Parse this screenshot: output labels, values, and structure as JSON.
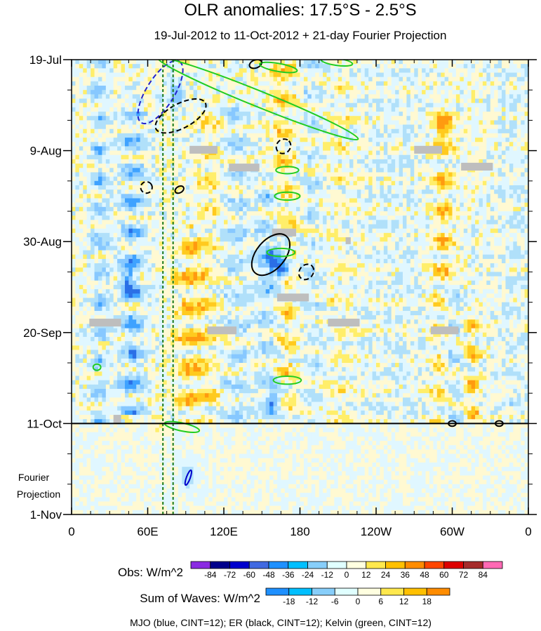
{
  "chart_data": {
    "type": "heatmap",
    "title": "OLR anomalies: 17.5°S - 2.5°S",
    "subtitle": "19-Jul-2012 to 11-Oct-2012 + 21-day Fourier Projection",
    "x_tick_labels": [
      "0",
      "60E",
      "120E",
      "180",
      "120W",
      "60W",
      "0"
    ],
    "x_tick_lons": [
      0,
      60,
      120,
      180,
      240,
      300,
      360
    ],
    "xlim": [
      0,
      360
    ],
    "y_ticks": [
      {
        "label": "19-Jul",
        "day": 0
      },
      {
        "label": "9-Aug",
        "day": 21
      },
      {
        "label": "30-Aug",
        "day": 42
      },
      {
        "label": "20-Sep",
        "day": 63
      },
      {
        "label": "11-Oct",
        "day": 84
      },
      {
        "label": "1-Nov",
        "day": 105
      }
    ],
    "ylim_days": [
      0,
      105
    ],
    "projection_label_line1": "Fourier",
    "projection_label_line2": "Projection",
    "end_of_obs_day": 84,
    "dashed_longitudes": [
      72,
      80
    ],
    "obs_colorbar": {
      "name": "Obs: W/m^2",
      "levels": [
        "-84",
        "-72",
        "-60",
        "-48",
        "-36",
        "-24",
        "-12",
        "0",
        "12",
        "24",
        "36",
        "48",
        "60",
        "72",
        "84"
      ],
      "colors": [
        "#8a2be2",
        "#00008b",
        "#0000cd",
        "#4169e1",
        "#1e90ff",
        "#00bfff",
        "#87cefa",
        "#e0ffff",
        "#ffffe0",
        "#ffe84d",
        "#ffc000",
        "#ff8c00",
        "#ff4500",
        "#dd0000",
        "#a52a2a",
        "#ff69b4"
      ]
    },
    "waves_colorbar": {
      "name": "Sum of Waves: W/m^2",
      "levels": [
        "-18",
        "-12",
        "-6",
        "0",
        "6",
        "12",
        "18"
      ],
      "colors": [
        "#1e90ff",
        "#00bfff",
        "#87cefa",
        "#e0ffff",
        "#ffffe0",
        "#ffe84d",
        "#ffc000",
        "#ff8c00"
      ]
    },
    "footnote": "MJO (blue, CINT=12); ER (black, CINT=12); Kelvin (green, CINT=12)",
    "missing_data_boxes": [
      {
        "lon0": 93,
        "lon1": 115,
        "day0": 19.9,
        "day1": 21.7
      },
      {
        "lon0": 124,
        "lon1": 148,
        "day0": 24.0,
        "day1": 25.8
      },
      {
        "lon0": 158,
        "lon1": 177,
        "day0": 39.0,
        "day1": 40.8
      },
      {
        "lon0": 216,
        "lon1": 220,
        "day0": 41.0,
        "day1": 42.6
      },
      {
        "lon0": 162,
        "lon1": 187,
        "day0": 54.0,
        "day1": 55.8
      },
      {
        "lon0": 14,
        "lon1": 39,
        "day0": 59.8,
        "day1": 61.6
      },
      {
        "lon0": 107,
        "lon1": 130,
        "day0": 61.6,
        "day1": 63.4
      },
      {
        "lon0": 202,
        "lon1": 227,
        "day0": 59.8,
        "day1": 61.6
      },
      {
        "lon0": 283,
        "lon1": 305,
        "day0": 61.6,
        "day1": 63.4
      },
      {
        "lon0": 270,
        "lon1": 292,
        "day0": 19.9,
        "day1": 21.7
      },
      {
        "lon0": 307,
        "lon1": 332,
        "day0": 23.8,
        "day1": 25.6
      },
      {
        "lon0": 33,
        "lon1": 39,
        "day0": 82.0,
        "day1": 84.0
      }
    ],
    "wave_contours": [
      {
        "wave": "MJO",
        "color": "#2222cc",
        "dashed": true,
        "lon": 70,
        "day": 7.5,
        "dlon": 22,
        "dday": 16,
        "angle": -58
      },
      {
        "wave": "MJO",
        "color": "#0000cc",
        "dashed": false,
        "lon": 92,
        "day": 96.5,
        "dlon": 3,
        "dday": 3,
        "angle": -70
      },
      {
        "wave": "ER",
        "color": "#000000",
        "dashed": true,
        "lon": 86,
        "day": 13,
        "dlon": 44,
        "dday": 5,
        "angle": -28
      },
      {
        "wave": "ER",
        "color": "#000000",
        "dashed": true,
        "lon": 167,
        "day": 20,
        "dlon": 12,
        "dday": 2.5,
        "angle": -45
      },
      {
        "wave": "ER",
        "color": "#000000",
        "dashed": true,
        "lon": 59,
        "day": 29.5,
        "dlon": 9,
        "dday": 2,
        "angle": -30
      },
      {
        "wave": "ER",
        "color": "#000000",
        "dashed": false,
        "lon": 85,
        "day": 30,
        "dlon": 5,
        "dday": 1.5,
        "angle": -30
      },
      {
        "wave": "ER",
        "color": "#000000",
        "dashed": false,
        "lon": 157,
        "day": 45,
        "dlon": 38,
        "dday": 6,
        "angle": -50
      },
      {
        "wave": "ER",
        "color": "#000000",
        "dashed": true,
        "lon": 185,
        "day": 49,
        "dlon": 13,
        "dday": 2.5,
        "angle": -50
      },
      {
        "wave": "ER",
        "color": "#000000",
        "dashed": false,
        "lon": 145,
        "day": 1,
        "dlon": 10,
        "dday": 1.2,
        "angle": -20
      },
      {
        "wave": "ER",
        "color": "#000000",
        "dashed": false,
        "lon": 300,
        "day": 84,
        "dlon": 6,
        "dday": 0.6,
        "angle": 0
      },
      {
        "wave": "ER",
        "color": "#000000",
        "dashed": false,
        "lon": 337,
        "day": 84,
        "dlon": 6,
        "dday": 0.6,
        "angle": 0
      },
      {
        "wave": "Kelvin",
        "color": "#22cc22",
        "dashed": false,
        "lon": 147,
        "day": 9,
        "dlon": 170,
        "dday": 3,
        "angle": 22
      },
      {
        "wave": "Kelvin",
        "color": "#22cc22",
        "dashed": false,
        "lon": 163,
        "day": 1.8,
        "dlon": 30,
        "dday": 1.2,
        "angle": 10
      },
      {
        "wave": "Kelvin",
        "color": "#22cc22",
        "dashed": false,
        "lon": 209,
        "day": 0.5,
        "dlon": 25,
        "dday": 1,
        "angle": 8
      },
      {
        "wave": "Kelvin",
        "color": "#22cc22",
        "dashed": false,
        "lon": 170,
        "day": 25.5,
        "dlon": 18,
        "dday": 1,
        "angle": 0
      },
      {
        "wave": "Kelvin",
        "color": "#22cc22",
        "dashed": false,
        "lon": 170,
        "day": 31.5,
        "dlon": 20,
        "dday": 1.2,
        "angle": 0
      },
      {
        "wave": "Kelvin",
        "color": "#22cc22",
        "dashed": false,
        "lon": 165,
        "day": 44.5,
        "dlon": 22,
        "dday": 1.2,
        "angle": 0
      },
      {
        "wave": "Kelvin",
        "color": "#22cc22",
        "dashed": false,
        "lon": 170,
        "day": 74,
        "dlon": 22,
        "dday": 1.2,
        "angle": 0
      },
      {
        "wave": "Kelvin",
        "color": "#22cc22",
        "dashed": false,
        "lon": 87,
        "day": 84.8,
        "dlon": 28,
        "dday": 1.2,
        "angle": 12
      },
      {
        "wave": "Kelvin",
        "color": "#22cc22",
        "dashed": false,
        "lon": 20,
        "day": 71,
        "dlon": 6,
        "dday": 0.8,
        "angle": 0
      }
    ]
  }
}
